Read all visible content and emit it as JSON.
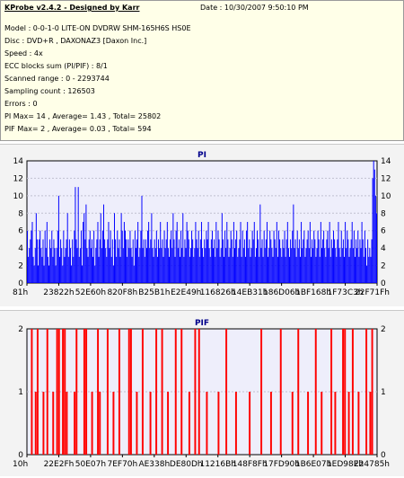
{
  "header": {
    "title": "KProbe v2.4.2 - Designed by Karr",
    "date": "Date : 10/30/2007 9:50:10 PM"
  },
  "info": [
    "Model : 0-0-1-0 LITE-ON DVDRW SHM-165H6S HS0E",
    "Disc : DVD+R , DAXONAZ3 [Daxon Inc.]",
    "Speed : 4x",
    "ECC blocks sum (PI/PIF) : 8/1",
    "Scanned range : 0 - 2293744",
    "Sampling count : 126503",
    "Errors : 0",
    "PI Max= 14 , Average= 1.43 , Total= 25802",
    "PIF Max= 2 , Average= 0.03 , Total= 594"
  ],
  "colors": {
    "pi": "#0000ff",
    "pif": "#ff0000",
    "plot_bg": "#eeeefb",
    "grid": "#c0c0d0"
  },
  "chart_data": [
    {
      "type": "bar",
      "title": "PI",
      "grid": true,
      "ylim": [
        0,
        14
      ],
      "yticks": [
        0,
        2,
        4,
        6,
        8,
        10,
        12,
        14
      ],
      "xticks": [
        "81h",
        "23822h",
        "52E60h",
        "820F8h",
        "B25B1h",
        "E2E49h",
        "116826h",
        "14EB31h",
        "186D06h",
        "1BF168h",
        "1F73C3h",
        "22F71Fh"
      ],
      "summary": {
        "max": 14,
        "average": 1.43,
        "total": 25802
      },
      "series": [
        {
          "values": [
            6,
            3,
            4,
            5,
            6,
            7,
            3,
            2,
            4,
            8,
            5,
            2,
            5,
            6,
            4,
            3,
            5,
            2,
            6,
            4,
            7,
            3,
            2,
            5,
            4,
            6,
            3,
            5,
            4,
            2,
            4,
            6,
            10,
            3,
            5,
            4,
            2,
            6,
            3,
            4,
            5,
            8,
            3,
            5,
            4,
            2,
            5,
            3,
            6,
            11,
            5,
            4,
            11,
            3,
            4,
            6,
            2,
            7,
            8,
            5,
            9,
            4,
            3,
            5,
            6,
            4,
            5,
            3,
            6,
            2,
            4,
            5,
            7,
            3,
            5,
            8,
            4,
            6,
            9,
            5,
            4,
            3,
            5,
            7,
            4,
            6,
            3,
            5,
            2,
            8,
            5,
            3,
            6,
            4,
            5,
            3,
            8,
            6,
            4,
            7,
            6,
            5,
            3,
            5,
            4,
            6,
            4,
            3,
            5,
            2,
            6,
            4,
            5,
            7,
            3,
            4,
            6,
            10,
            4,
            5,
            3,
            5,
            4,
            6,
            7,
            4,
            5,
            8,
            4,
            3,
            5,
            4,
            6,
            3,
            5,
            4,
            7,
            4,
            5,
            3,
            6,
            4,
            5,
            7,
            4,
            3,
            5,
            6,
            4,
            8,
            5,
            3,
            6,
            7,
            4,
            5,
            3,
            6,
            4,
            8,
            3,
            5,
            4,
            7,
            6,
            5,
            3,
            4,
            6,
            5,
            3,
            4,
            7,
            5,
            4,
            6,
            3,
            5,
            7,
            4,
            3,
            5,
            4,
            6,
            5,
            7,
            4,
            3,
            5,
            6,
            4,
            5,
            3,
            7,
            4,
            6,
            5,
            3,
            4,
            8,
            5,
            3,
            6,
            4,
            7,
            5,
            3,
            4,
            6,
            5,
            3,
            7,
            4,
            5,
            6,
            3,
            4,
            5,
            7,
            3,
            6,
            4,
            5,
            3,
            6,
            7,
            4,
            5,
            3,
            4,
            6,
            5,
            7,
            3,
            4,
            6,
            5,
            3,
            9,
            4,
            5,
            3,
            6,
            4,
            5,
            7,
            3,
            4,
            6,
            5,
            4,
            3,
            6,
            5,
            4,
            7,
            3,
            6,
            5,
            4,
            3,
            5,
            4,
            6,
            3,
            5,
            7,
            4,
            3,
            5,
            4,
            6,
            9,
            4,
            5,
            3,
            6,
            4,
            5,
            3,
            7,
            4,
            5,
            6,
            3,
            4,
            5,
            6,
            4,
            7,
            3,
            5,
            4,
            6,
            5,
            3,
            4,
            6,
            5,
            3,
            7,
            4,
            5,
            6,
            4,
            3,
            5,
            6,
            4,
            7,
            3,
            5,
            4,
            6,
            5,
            4,
            3,
            5,
            7,
            4,
            3,
            6,
            4,
            5,
            3,
            7,
            4,
            6,
            5,
            3,
            4,
            5,
            7,
            4,
            6,
            3,
            5,
            4,
            6,
            3,
            5,
            4,
            7,
            5,
            3,
            6,
            4,
            2,
            5,
            3,
            4,
            3,
            5,
            12,
            14,
            13,
            10,
            8
          ]
        }
      ]
    },
    {
      "type": "bar",
      "title": "PIF",
      "grid": true,
      "ylim": [
        0,
        2
      ],
      "yticks": [
        0,
        1,
        2
      ],
      "xticks": [
        "10h",
        "22E2Fh",
        "50E07h",
        "7EF70h",
        "AE338h",
        "DE80Dh",
        "11216Bh",
        "148F8Fh",
        "17FD90h",
        "1B6E07h",
        "1ED98Eh",
        "224785h"
      ],
      "summary": {
        "max": 2,
        "average": 0.03,
        "total": 594
      },
      "series": [
        {
          "values": [
            0,
            0,
            2,
            0,
            1,
            2,
            0,
            0,
            1,
            0,
            2,
            0,
            0,
            1,
            0,
            2,
            2,
            0,
            2,
            2,
            1,
            0,
            0,
            0,
            1,
            2,
            0,
            0,
            0,
            2,
            2,
            0,
            0,
            1,
            0,
            0,
            2,
            1,
            0,
            0,
            0,
            2,
            0,
            0,
            1,
            0,
            0,
            2,
            0,
            0,
            0,
            0,
            2,
            2,
            0,
            0,
            1,
            0,
            0,
            2,
            0,
            0,
            0,
            1,
            0,
            0,
            2,
            0,
            0,
            2,
            0,
            0,
            1,
            0,
            0,
            0,
            2,
            0,
            0,
            2,
            0,
            0,
            0,
            1,
            0,
            0,
            2,
            0,
            2,
            0,
            0,
            0,
            1,
            0,
            0,
            0,
            0,
            0,
            1,
            0,
            0,
            0,
            2,
            0,
            0,
            0,
            0,
            1,
            0,
            0,
            0,
            0,
            0,
            0,
            1,
            0,
            0,
            0,
            0,
            0,
            2,
            0,
            0,
            0,
            0,
            1,
            0,
            0,
            0,
            0,
            2,
            0,
            0,
            0,
            0,
            0,
            1,
            0,
            0,
            2,
            0,
            0,
            0,
            0,
            1,
            0,
            0,
            0,
            2,
            0,
            0,
            1,
            0,
            0,
            0,
            0,
            2,
            0,
            1,
            0,
            0,
            0,
            2,
            2,
            0,
            1,
            0,
            2,
            0,
            0,
            1,
            0,
            0,
            0,
            2,
            0,
            1,
            2,
            0,
            0
          ]
        }
      ]
    }
  ]
}
